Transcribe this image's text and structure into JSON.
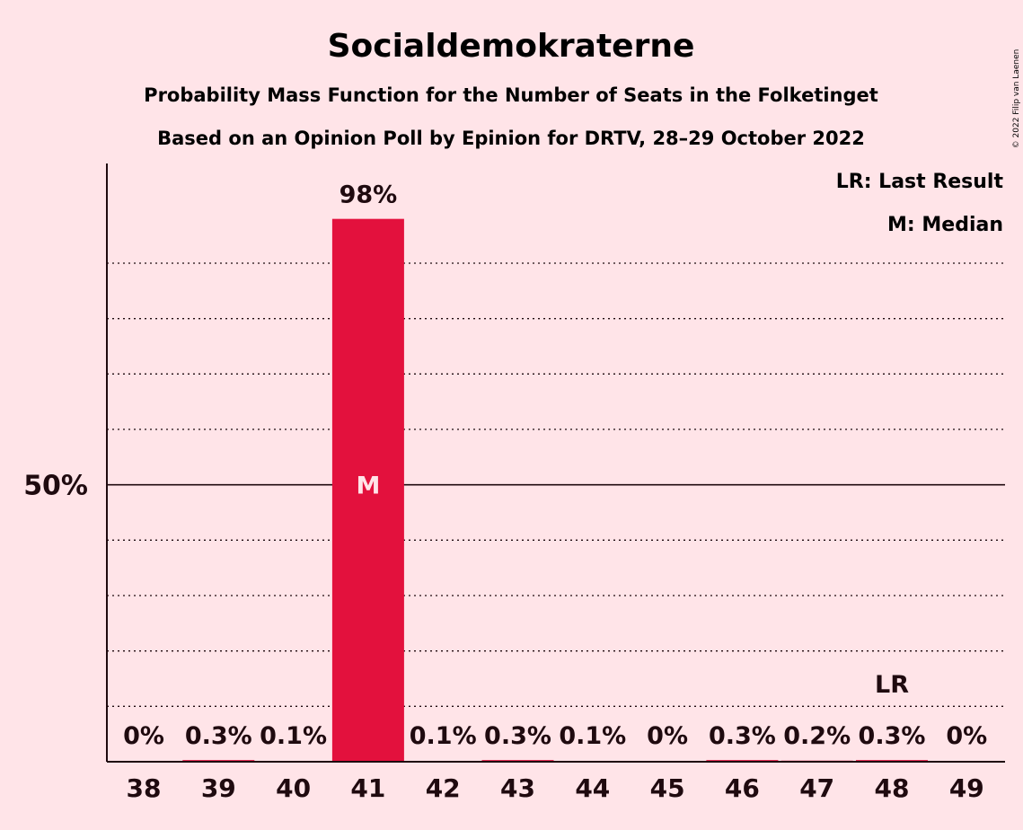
{
  "chart_data": {
    "type": "bar",
    "title": "Socialdemokraterne",
    "subtitle1": "Probability Mass Function for the Number of Seats in the Folketinget",
    "subtitle2": "Based on an Opinion Poll by Epinion for DRTV, 28–29 October 2022",
    "categories": [
      "38",
      "39",
      "40",
      "41",
      "42",
      "43",
      "44",
      "45",
      "46",
      "47",
      "48",
      "49"
    ],
    "values": [
      0,
      0.3,
      0.1,
      98,
      0.1,
      0.3,
      0.1,
      0,
      0.3,
      0.2,
      0.3,
      0
    ],
    "value_labels": [
      "0%",
      "0.3%",
      "0.1%",
      "98%",
      "0.1%",
      "0.3%",
      "0.1%",
      "0%",
      "0.3%",
      "0.2%",
      "0.3%",
      "0%"
    ],
    "ylim": [
      0,
      108
    ],
    "yticks": [
      {
        "value": 50,
        "label": "50%"
      }
    ],
    "gridlines": [
      10,
      20,
      30,
      40,
      60,
      70,
      80,
      90
    ],
    "median_index": 3,
    "median_label": "M",
    "last_result_index": 10,
    "last_result_label": "LR",
    "legend": [
      "LR: Last Result",
      "M: Median"
    ],
    "legend_position": "top-right",
    "copyright": "© 2022 Filip van Laenen",
    "bar_color": "#E3113D",
    "background_color": "#FFE4E8"
  }
}
